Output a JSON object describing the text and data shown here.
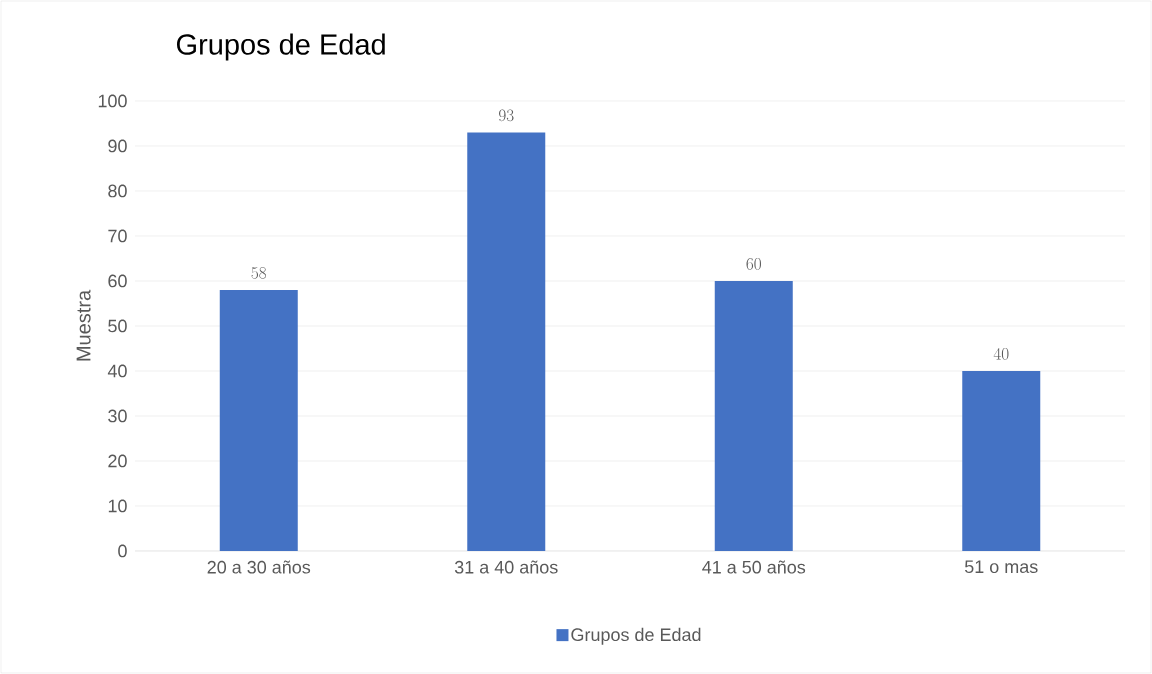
{
  "chart_data": {
    "type": "bar",
    "title": "Grupos de Edad",
    "ylabel": "Muestra",
    "categories": [
      "20 a 30 años",
      "31 a 40 años",
      "41 a 50 años",
      "51 o mas"
    ],
    "series": [
      {
        "name": "Grupos de Edad",
        "color": "#4472c4",
        "values": [
          58,
          93,
          60,
          40
        ]
      }
    ],
    "ylim": [
      0,
      100
    ],
    "yticks": [
      0,
      10,
      20,
      30,
      40,
      50,
      60,
      70,
      80,
      90,
      100
    ],
    "grid": "y",
    "legend": "bottom",
    "data_labels": true
  }
}
